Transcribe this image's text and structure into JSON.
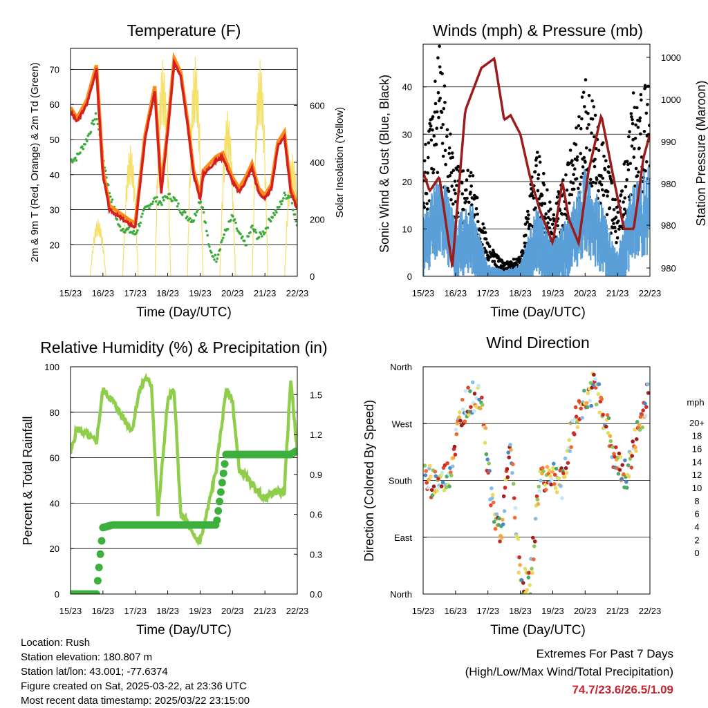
{
  "colors": {
    "temp_2m": "#d62020",
    "temp_9m": "#ff8c1a",
    "dewpoint": "#3daa3d",
    "solar": "#f5e06a",
    "wind": "#5a9fd8",
    "gust": "#000000",
    "pressure": "#9b1c1c",
    "rh": "#8fce4a",
    "precip": "#3caf3c",
    "extremes_text": "#c42430"
  },
  "x_ticks": [
    "15/23",
    "16/23",
    "17/23",
    "18/23",
    "19/23",
    "20/23",
    "21/23",
    "22/23"
  ],
  "x_label": "Time (Day/UTC)",
  "panels": {
    "temperature": {
      "title": "Temperature (F)",
      "ylabel_left": "2m & 9m T (Red, Orange) & 2m Td (Green)",
      "ylabel_right": "Solar Insolation (Yellow)",
      "yticks_left": [
        "20",
        "30",
        "40",
        "50",
        "60",
        "70"
      ],
      "yticks_right": [
        "0",
        "200",
        "400",
        "600"
      ]
    },
    "winds": {
      "title": "Winds (mph) & Pressure (mb)",
      "ylabel_left": "Sonic Wind & Gust (Blue, Black)",
      "ylabel_right": "Station Pressure (Maroon)",
      "yticks_left": [
        "0",
        "10",
        "20",
        "30",
        "40"
      ],
      "yticks_right": [
        "980",
        "980",
        "980",
        "990",
        "1000",
        "1000"
      ]
    },
    "humidity": {
      "title": "Relative Humidity (%) & Precipitation (in)",
      "ylabel_left": "Percent & Total Rainfall",
      "yticks_left": [
        "0",
        "20",
        "40",
        "60",
        "80",
        "100"
      ],
      "yticks_right": [
        "0.0",
        "0.3",
        "0.6",
        "0.9",
        "1.2",
        "1.5"
      ]
    },
    "direction": {
      "title": "Wind Direction",
      "ylabel_left": "Direction (Colored By Speed)",
      "yticks_left": [
        "North",
        "East",
        "South",
        "West",
        "North"
      ],
      "legend_title": "mph",
      "legend_labels": [
        "20+",
        "18",
        "16",
        "14",
        "12",
        "10",
        "8",
        "6",
        "4",
        "2",
        "0"
      ],
      "legend_colors": [
        "#a51c1c",
        "#d22a22",
        "#e2452c",
        "#f06a30",
        "#f9a73e",
        "#f3d35c",
        "#dce25b",
        "#8fc65a",
        "#4ea86a",
        "#4a88c4",
        "#86bde6",
        "#c6e6f8"
      ]
    }
  },
  "info": {
    "location": "Location: Rush",
    "elevation": "Station elevation: 180.807 m",
    "latlon": "Station lat/lon: 43.001; -77.6374",
    "created": "Figure created on Sat, 2025-03-22, at 23:36 UTC",
    "latest": "Most recent data timestamp: 2025/03/22 23:15:00"
  },
  "extremes": {
    "title": "Extremes For Past 7 Days",
    "subtitle": "(High/Low/Max Wind/Total Precipitation)",
    "values": "74.7/23.6/26.5/1.09"
  },
  "chart_data": [
    {
      "type": "line",
      "title": "Temperature (F)",
      "xlabel": "Time (Day/UTC)",
      "ylabel": "2m & 9m T (Red, Orange) & 2m Td (Green)",
      "ylabel_right": "Solar Insolation (Yellow)",
      "ylim": [
        11,
        76
      ],
      "ylim_right": [
        0,
        800
      ],
      "x": [
        0,
        0.2,
        0.5,
        0.8,
        1.0,
        1.2,
        1.5,
        1.8,
        2.0,
        2.3,
        2.6,
        2.8,
        3.0,
        3.2,
        3.4,
        3.6,
        3.8,
        4.0,
        4.1,
        4.3,
        4.5,
        4.7,
        5.0,
        5.2,
        5.4,
        5.6,
        5.8,
        6.0,
        6.2,
        6.4,
        6.6,
        6.8,
        7.0
      ],
      "series": [
        {
          "name": "2m T",
          "values": [
            58,
            55,
            60,
            70,
            40,
            30,
            28,
            26,
            25,
            50,
            64,
            35,
            52,
            72,
            68,
            55,
            40,
            33,
            40,
            42,
            44,
            45,
            38,
            35,
            38,
            42,
            35,
            33,
            36,
            48,
            51,
            35,
            30
          ]
        },
        {
          "name": "2m Td",
          "values": [
            44,
            45,
            50,
            57,
            45,
            35,
            25,
            24,
            23,
            30,
            33,
            32,
            34,
            33,
            30,
            28,
            27,
            33,
            30,
            18,
            16,
            22,
            28,
            23,
            20,
            25,
            22,
            24,
            28,
            30,
            34,
            34,
            25
          ]
        }
      ],
      "solar_peaks": [
        {
          "x": 0.85,
          "y": 200
        },
        {
          "x": 1.85,
          "y": 460
        },
        {
          "x": 2.85,
          "y": 760
        },
        {
          "x": 3.85,
          "y": 770
        },
        {
          "x": 4.85,
          "y": 580
        },
        {
          "x": 5.85,
          "y": 760
        },
        {
          "x": 6.85,
          "y": 430
        }
      ]
    },
    {
      "type": "scatter",
      "title": "Winds (mph) & Pressure (mb)",
      "xlabel": "Time (Day/UTC)",
      "ylabel": "Sonic Wind & Gust (Blue, Black)",
      "ylabel_right": "Station Pressure (Maroon)",
      "ylim": [
        0,
        49
      ],
      "x": [
        0,
        0.5,
        1.0,
        1.5,
        2.0,
        2.5,
        3.0,
        3.5,
        4.0,
        4.5,
        5.0,
        5.5,
        6.0,
        6.5,
        7.0
      ],
      "series": [
        {
          "name": "Gust",
          "values": [
            18,
            35,
            17,
            16,
            5,
            2,
            3,
            20,
            10,
            18,
            30,
            22,
            10,
            28,
            30
          ]
        },
        {
          "name": "Wind",
          "values": [
            10,
            18,
            10,
            12,
            2,
            1,
            2,
            12,
            6,
            10,
            18,
            12,
            4,
            16,
            18
          ]
        }
      ],
      "pressure_line": {
        "x": [
          0,
          0.2,
          0.5,
          0.9,
          1.3,
          1.8,
          2.2,
          2.5,
          2.7,
          3.0,
          3.3,
          3.6,
          4.0,
          4.3,
          4.5,
          4.8,
          5.1,
          5.5,
          5.9,
          6.2,
          6.5,
          6.8,
          7.0
        ],
        "y": [
          22,
          18,
          21,
          2,
          35,
          44,
          46,
          33,
          34,
          30,
          21,
          14,
          7,
          20,
          12,
          7,
          22,
          34,
          20,
          10,
          10,
          25,
          30
        ]
      }
    },
    {
      "type": "line",
      "title": "Relative Humidity (%) & Precipitation (in)",
      "xlabel": "Time (Day/UTC)",
      "ylabel": "Percent & Total Rainfall",
      "ylim": [
        0,
        100
      ],
      "x": [
        0,
        0.2,
        0.5,
        0.8,
        1.0,
        1.3,
        1.6,
        1.9,
        2.1,
        2.3,
        2.5,
        2.7,
        3.0,
        3.2,
        3.4,
        3.6,
        3.8,
        4.0,
        4.2,
        4.5,
        4.8,
        5.0,
        5.2,
        5.5,
        5.8,
        6.0,
        6.3,
        6.6,
        6.8,
        7.0
      ],
      "series": [
        {
          "name": "RH",
          "values": [
            62,
            73,
            70,
            67,
            90,
            85,
            78,
            72,
            88,
            95,
            92,
            35,
            85,
            90,
            35,
            32,
            25,
            23,
            35,
            55,
            90,
            85,
            55,
            50,
            45,
            42,
            45,
            45,
            95,
            62
          ]
        },
        {
          "name": "Precip",
          "values": [
            0,
            0,
            0,
            0,
            0.5,
            0.52,
            0.52,
            0.52,
            0.52,
            0.52,
            0.52,
            0.52,
            0.52,
            0.52,
            0.52,
            0.52,
            0.52,
            0.52,
            0.52,
            0.52,
            1.05,
            1.05,
            1.05,
            1.05,
            1.05,
            1.05,
            1.05,
            1.05,
            1.05,
            1.08
          ]
        }
      ],
      "ylim_right": [
        0,
        1.71
      ]
    },
    {
      "type": "scatter",
      "title": "Wind Direction",
      "xlabel": "Time (Day/UTC)",
      "ylabel": "Direction (Colored By Speed)",
      "ylim": [
        0,
        360
      ],
      "x": [
        0.1,
        0.5,
        0.8,
        1.0,
        1.2,
        1.5,
        1.8,
        2.0,
        2.2,
        2.4,
        2.7,
        3.0,
        3.3,
        3.6,
        4.0,
        4.3,
        4.6,
        5.0,
        5.3,
        5.6,
        6.0,
        6.3,
        6.6,
        6.9
      ],
      "series": [
        {
          "name": "Direction",
          "values": [
            180,
            175,
            190,
            240,
            290,
            310,
            320,
            200,
            120,
            100,
            230,
            20,
            15,
            185,
            190,
            175,
            260,
            310,
            330,
            280,
            200,
            190,
            250,
            310
          ]
        }
      ]
    }
  ]
}
